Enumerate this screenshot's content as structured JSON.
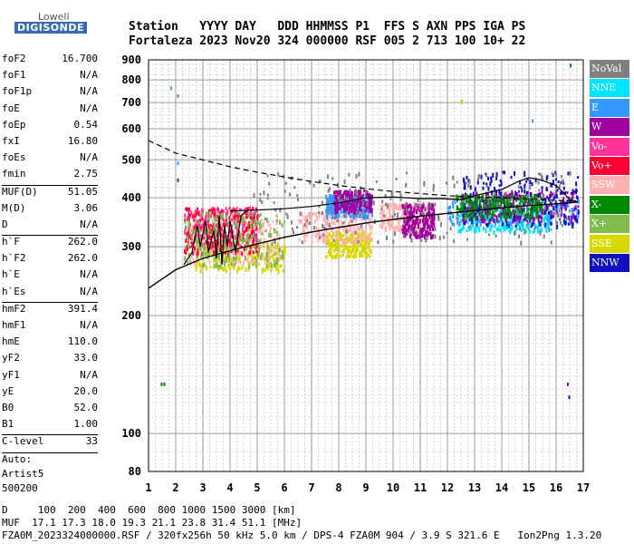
{
  "logo": {
    "line1": "Lowell",
    "line2": "DIGISONDE"
  },
  "header": {
    "line1": "Station   YYYY DAY   DDD HHMMSS P1  FFS S AXN PPS IGA PS",
    "line2": "Fortaleza 2023 Nov20 324 000000 RSF 005 2 713 100 10+ 22"
  },
  "params": [
    {
      "k": "foF2",
      "v": "16.700"
    },
    {
      "k": "foF1",
      "v": "N/A"
    },
    {
      "k": "foF1p",
      "v": "N/A"
    },
    {
      "k": "foE",
      "v": "N/A"
    },
    {
      "k": "foEp",
      "v": "0.54"
    },
    {
      "k": "fxI",
      "v": "16.80"
    },
    {
      "k": "foEs",
      "v": "N/A"
    },
    {
      "k": "fmin",
      "v": "2.75"
    },
    {
      "sep": true
    },
    {
      "k": "MUF(D)",
      "v": "51.05"
    },
    {
      "k": "M(D)",
      "v": "3.06"
    },
    {
      "k": "D",
      "v": "N/A"
    },
    {
      "sep": true
    },
    {
      "k": "h`F",
      "v": "262.0"
    },
    {
      "k": "h`F2",
      "v": "262.0"
    },
    {
      "k": "h`E",
      "v": "N/A"
    },
    {
      "k": "h`Es",
      "v": "N/A"
    },
    {
      "sep": true
    },
    {
      "k": "hmF2",
      "v": "391.4"
    },
    {
      "k": "hmF1",
      "v": "N/A"
    },
    {
      "k": "hmE",
      "v": "110.0"
    },
    {
      "k": "yF2",
      "v": "33.0"
    },
    {
      "k": "yF1",
      "v": "N/A"
    },
    {
      "k": "yE",
      "v": "20.0"
    },
    {
      "k": "B0",
      "v": "52.0"
    },
    {
      "k": "B1",
      "v": "1.00"
    },
    {
      "sep": true
    },
    {
      "k": "C-level",
      "v": "33"
    },
    {
      "sep": true
    },
    {
      "text": "Auto:"
    },
    {
      "text": "Artist5"
    },
    {
      "text": "500200"
    }
  ],
  "legend": [
    {
      "label": "NoVal",
      "color": "#808080"
    },
    {
      "label": "NNE",
      "color": "#00e5ff"
    },
    {
      "label": "E",
      "color": "#3399ff"
    },
    {
      "label": "W",
      "color": "#a000a0"
    },
    {
      "label": "Vo-",
      "color": "#ff3399"
    },
    {
      "label": "Vo+",
      "color": "#ff0033"
    },
    {
      "label": "SSW",
      "color": "#ffb0b0"
    },
    {
      "label": "X-",
      "color": "#008800"
    },
    {
      "label": "X+",
      "color": "#80bb50"
    },
    {
      "label": "SSE",
      "color": "#d8d800"
    },
    {
      "label": "NNW",
      "color": "#1010c0"
    }
  ],
  "footer": {
    "line1": "D     100  200  400  600  800 1000 1500 3000 [km]",
    "line2": "MUF  17.1 17.3 18.0 19.3 21.1 23.8 31.4 51.1 [MHz]",
    "line3": "FZA0M_2023324000000.RSF / 320fx256h 50 kHz 5.0 km / DPS-4 FZA0M 904 / 3.9 S 321.6 E   Ion2Png 1.3.20"
  },
  "chart_data": {
    "type": "scatter",
    "title": "",
    "xlabel": "",
    "ylabel": "",
    "xlim": [
      1,
      17
    ],
    "ylim": [
      80,
      900
    ],
    "y_scale": "log",
    "xticks": [
      1,
      2,
      3,
      4,
      5,
      6,
      7,
      8,
      9,
      10,
      11,
      12,
      13,
      14,
      15,
      16,
      17
    ],
    "yticks": [
      80,
      100,
      200,
      300,
      400,
      500,
      600,
      700,
      800,
      900
    ],
    "grid": true,
    "legend_position": "right",
    "clusters": [
      {
        "color": "#d8d800",
        "x": [
          2.7,
          6.0
        ],
        "y": [
          262,
          310
        ]
      },
      {
        "color": "#d8d800",
        "x": [
          7.5,
          9.2
        ],
        "y": [
          285,
          330
        ]
      },
      {
        "color": "#ffb0b0",
        "x": [
          2.3,
          5.8
        ],
        "y": [
          275,
          355
        ]
      },
      {
        "color": "#ffb0b0",
        "x": [
          6.5,
          9.2
        ],
        "y": [
          310,
          370
        ]
      },
      {
        "color": "#ffb0b0",
        "x": [
          9.5,
          11.5
        ],
        "y": [
          330,
          390
        ]
      },
      {
        "color": "#00e5ff",
        "x": [
          12.3,
          15.8
        ],
        "y": [
          330,
          375
        ]
      },
      {
        "color": "#3399ff",
        "x": [
          12.0,
          16.8
        ],
        "y": [
          345,
          400
        ]
      },
      {
        "color": "#3399ff",
        "x": [
          7.5,
          9.2
        ],
        "y": [
          360,
          410
        ]
      },
      {
        "color": "#a000a0",
        "x": [
          7.8,
          9.2
        ],
        "y": [
          370,
          420
        ]
      },
      {
        "color": "#a000a0",
        "x": [
          10.3,
          11.5
        ],
        "y": [
          320,
          390
        ]
      },
      {
        "color": "#a000a0",
        "x": [
          12.5,
          16.8
        ],
        "y": [
          350,
          420
        ]
      },
      {
        "color": "#ff3399",
        "x": [
          2.3,
          5.0
        ],
        "y": [
          300,
          380
        ]
      },
      {
        "color": "#ff0033",
        "x": [
          2.3,
          5.0
        ],
        "y": [
          290,
          380
        ]
      },
      {
        "color": "#1010c0",
        "x": [
          12.5,
          16.8
        ],
        "y": [
          340,
          470
        ]
      },
      {
        "color": "#008800",
        "x": [
          12.3,
          15.5
        ],
        "y": [
          360,
          410
        ]
      },
      {
        "color": "#80bb50",
        "x": [
          2.3,
          6.0
        ],
        "y": [
          270,
          370
        ]
      },
      {
        "color": "#808080",
        "x": [
          4.8,
          16.5
        ],
        "y": [
          310,
          470
        ]
      }
    ],
    "outliers": [
      {
        "x": 1.45,
        "y": 135,
        "color": "#008800"
      },
      {
        "x": 1.55,
        "y": 135,
        "color": "#008800"
      },
      {
        "x": 1.8,
        "y": 770,
        "color": "#3399ff"
      },
      {
        "x": 2.05,
        "y": 735,
        "color": "#3399ff"
      },
      {
        "x": 2.05,
        "y": 495,
        "color": "#3399ff"
      },
      {
        "x": 2.05,
        "y": 448,
        "color": "#a000a0"
      },
      {
        "x": 12.5,
        "y": 712,
        "color": "#80bb50"
      },
      {
        "x": 12.5,
        "y": 708,
        "color": "#d8d800"
      },
      {
        "x": 15.1,
        "y": 635,
        "color": "#3399ff"
      },
      {
        "x": 16.4,
        "y": 135,
        "color": "#a000a0"
      },
      {
        "x": 16.45,
        "y": 125,
        "color": "#1010c0"
      },
      {
        "x": 16.5,
        "y": 880,
        "color": "#008800"
      }
    ],
    "trace_dashed": {
      "x": [
        1,
        2,
        3,
        4,
        5,
        6,
        7,
        8,
        9,
        10,
        11,
        12,
        13,
        14,
        15,
        16,
        16.8
      ],
      "y": [
        560,
        520,
        500,
        480,
        465,
        452,
        440,
        430,
        422,
        415,
        410,
        405,
        402,
        400,
        397,
        394,
        392
      ]
    },
    "trace_lower": {
      "x": [
        1,
        2,
        3,
        4,
        5,
        6,
        7,
        8,
        9,
        10,
        11,
        12,
        13,
        14,
        15,
        16,
        16.8
      ],
      "y": [
        235,
        262,
        280,
        293,
        305,
        317,
        327,
        336,
        345,
        352,
        359,
        365,
        371,
        377,
        382,
        386,
        390
      ]
    },
    "trace_upper": {
      "x": [
        4.0,
        5,
        6,
        7,
        8,
        9,
        10,
        11,
        11.8,
        12.5,
        13,
        14,
        14.6,
        15,
        15.4,
        16,
        16.3,
        16.5,
        16.8
      ],
      "y": [
        370,
        372,
        375,
        380,
        388,
        400,
        402,
        398,
        398,
        395,
        405,
        420,
        440,
        450,
        445,
        430,
        410,
        395,
        390
      ]
    },
    "trace_zigzag": {
      "x": [
        2.3,
        2.6,
        2.8,
        2.9,
        3.1,
        3.2,
        3.4,
        3.5,
        3.6,
        3.7,
        3.8,
        3.9,
        4.0,
        4.2,
        4.4,
        4.6
      ],
      "y": [
        270,
        290,
        340,
        300,
        350,
        290,
        330,
        280,
        360,
        270,
        340,
        300,
        350,
        290,
        360,
        370
      ]
    }
  }
}
